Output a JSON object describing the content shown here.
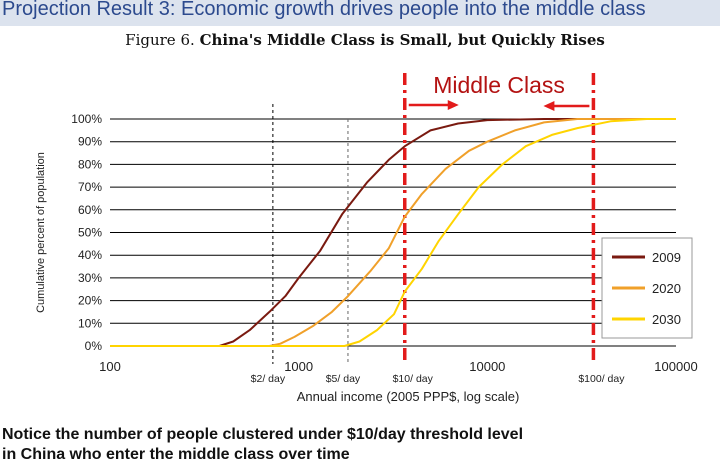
{
  "header": {
    "text": "Projection Result 3:  Economic growth drives people into the middle class"
  },
  "figure": {
    "label": "Figure 6.",
    "title": "China's Middle Class is Small, but Quickly Rises"
  },
  "notice": {
    "line1": "Notice the number of people clustered under $10/day threshold level",
    "line2": "in China who enter the middle class over time"
  },
  "colors": {
    "s2009": "#7a1a10",
    "s2020": "#f0a02a",
    "s2030": "#ffd400",
    "marker": "#e21b1b",
    "header_bg": "#dce3ee",
    "header_text": "#2c4a8e"
  },
  "chart_data": {
    "type": "line",
    "xscale": "log",
    "xlim": [
      100,
      100000
    ],
    "ylim": [
      0,
      100
    ],
    "xlabel": "Annual income (2005 PPP$, log scale)",
    "ylabel": "Cumulative percent of population",
    "xticks": [
      100,
      1000,
      10000,
      100000
    ],
    "xtick_labels": [
      "100",
      "1000",
      "10000",
      "100000"
    ],
    "yticks": [
      0,
      10,
      20,
      30,
      40,
      50,
      60,
      70,
      80,
      90,
      100
    ],
    "ytick_labels": [
      "0%",
      "10%",
      "20%",
      "30%",
      "40%",
      "50%",
      "60%",
      "70%",
      "80%",
      "90%",
      "100%"
    ],
    "grid": "horizontal",
    "legend_position": "right",
    "series": [
      {
        "name": "2009",
        "color": "#7a1a10",
        "points": [
          [
            100,
            0
          ],
          [
            380,
            0
          ],
          [
            450,
            2
          ],
          [
            550,
            7
          ],
          [
            700,
            15
          ],
          [
            850,
            22
          ],
          [
            1000,
            30
          ],
          [
            1300,
            42
          ],
          [
            1700,
            58
          ],
          [
            2300,
            72
          ],
          [
            3000,
            82
          ],
          [
            3650,
            88
          ],
          [
            5000,
            95
          ],
          [
            7000,
            98
          ],
          [
            10000,
            99.5
          ],
          [
            20000,
            100
          ],
          [
            100000,
            100
          ]
        ]
      },
      {
        "name": "2020",
        "color": "#f0a02a",
        "points": [
          [
            100,
            0
          ],
          [
            700,
            0
          ],
          [
            800,
            1
          ],
          [
            950,
            4
          ],
          [
            1200,
            9
          ],
          [
            1500,
            15
          ],
          [
            1825,
            22
          ],
          [
            2400,
            33
          ],
          [
            3000,
            43
          ],
          [
            3650,
            57
          ],
          [
            4500,
            67
          ],
          [
            6000,
            78
          ],
          [
            8000,
            86
          ],
          [
            10000,
            90
          ],
          [
            14000,
            95
          ],
          [
            20000,
            98.5
          ],
          [
            30000,
            100
          ],
          [
            100000,
            100
          ]
        ]
      },
      {
        "name": "2030",
        "color": "#ffd400",
        "points": [
          [
            100,
            0
          ],
          [
            1750,
            0
          ],
          [
            2100,
            2
          ],
          [
            2600,
            7
          ],
          [
            3200,
            14
          ],
          [
            3650,
            24
          ],
          [
            4500,
            34
          ],
          [
            5500,
            46
          ],
          [
            7000,
            58
          ],
          [
            9000,
            70
          ],
          [
            12000,
            80
          ],
          [
            16000,
            88
          ],
          [
            22000,
            93
          ],
          [
            30000,
            96
          ],
          [
            45000,
            99
          ],
          [
            70000,
            100
          ],
          [
            100000,
            100
          ]
        ]
      }
    ],
    "thresholds": [
      {
        "x": 730,
        "label": "$2/ day",
        "style": "dashed-black"
      },
      {
        "x": 1825,
        "label": "$5/ day",
        "style": "dashed-gray"
      },
      {
        "x": 3650,
        "label": "$10/ day",
        "style": "dashed-red"
      },
      {
        "x": 36500,
        "label": "$100/ day",
        "style": "dashed-red"
      }
    ],
    "annotation": {
      "text": "Middle Class"
    }
  }
}
